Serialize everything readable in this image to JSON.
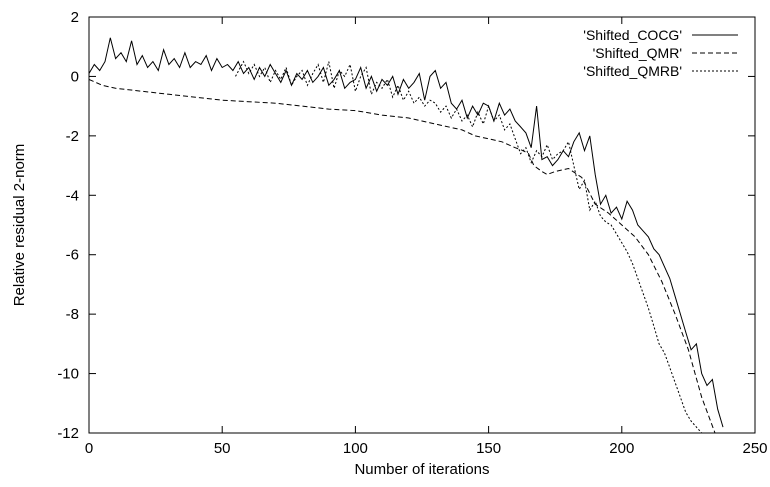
{
  "chart_data": {
    "type": "line",
    "xlabel": "Number of iterations",
    "ylabel": "Relative residual 2-norm",
    "xlim": [
      0,
      250
    ],
    "ylim": [
      -12,
      2
    ],
    "xticks": [
      "0",
      "50",
      "100",
      "150",
      "200",
      "250"
    ],
    "yticks": [
      "2",
      "0",
      "-2",
      "-4",
      "-6",
      "-8",
      "-10",
      "-12"
    ],
    "grid": false,
    "legend_position": "top-right",
    "series": [
      {
        "name": "'Shifted_COCG'",
        "style": "solid",
        "x": [
          0,
          2,
          4,
          6,
          8,
          10,
          12,
          14,
          16,
          18,
          20,
          22,
          24,
          26,
          28,
          30,
          32,
          34,
          36,
          38,
          40,
          42,
          44,
          46,
          48,
          50,
          52,
          54,
          56,
          58,
          60,
          62,
          64,
          66,
          68,
          70,
          72,
          74,
          76,
          78,
          80,
          82,
          84,
          86,
          88,
          90,
          92,
          94,
          96,
          98,
          100,
          102,
          104,
          106,
          108,
          110,
          112,
          114,
          116,
          118,
          120,
          122,
          124,
          126,
          128,
          130,
          132,
          134,
          136,
          138,
          140,
          142,
          144,
          146,
          148,
          150,
          152,
          154,
          156,
          158,
          160,
          162,
          164,
          166,
          168,
          170,
          172,
          174,
          176,
          178,
          180,
          182,
          184,
          186,
          188,
          190,
          192,
          194,
          196,
          198,
          200,
          202,
          204,
          206,
          208,
          210,
          212,
          214,
          216,
          218,
          220,
          222,
          224,
          226,
          228,
          230,
          232,
          234,
          236,
          238
        ],
        "values": [
          0.1,
          0.4,
          0.2,
          0.5,
          1.3,
          0.6,
          0.8,
          0.5,
          1.2,
          0.4,
          0.7,
          0.3,
          0.5,
          0.2,
          0.9,
          0.4,
          0.6,
          0.3,
          0.8,
          0.3,
          0.5,
          0.4,
          0.7,
          0.2,
          0.6,
          0.3,
          0.4,
          0.2,
          0.5,
          0.1,
          0.3,
          -0.1,
          0.3,
          0.0,
          0.4,
          0.1,
          -0.2,
          0.2,
          -0.3,
          0.1,
          -0.1,
          0.2,
          -0.2,
          0.0,
          0.3,
          -0.3,
          -0.1,
          0.2,
          -0.4,
          -0.2,
          -0.1,
          0.3,
          -0.4,
          0.0,
          -0.5,
          -0.1,
          -0.3,
          0.0,
          -0.6,
          -0.1,
          -0.4,
          -0.2,
          0.1,
          -0.8,
          0.0,
          0.2,
          -0.4,
          -0.2,
          -0.9,
          -1.1,
          -0.8,
          -1.4,
          -1.0,
          -1.3,
          -0.9,
          -1.0,
          -1.5,
          -0.9,
          -1.3,
          -1.1,
          -1.5,
          -1.7,
          -1.9,
          -2.4,
          -1.0,
          -2.8,
          -2.7,
          -3.0,
          -2.8,
          -2.5,
          -2.7,
          -2.2,
          -1.9,
          -2.5,
          -2.0,
          -3.3,
          -4.3,
          -4.0,
          -4.6,
          -4.4,
          -4.8,
          -4.2,
          -4.5,
          -5.0,
          -5.2,
          -5.4,
          -5.8,
          -6.0,
          -6.4,
          -6.8,
          -7.4,
          -8.0,
          -8.6,
          -9.2,
          -9.0,
          -10.0,
          -10.4,
          -10.2,
          -11.2,
          -11.8
        ]
      },
      {
        "name": "'Shifted_QMR'",
        "style": "dashed",
        "x": [
          0,
          5,
          10,
          20,
          30,
          40,
          50,
          60,
          70,
          80,
          90,
          100,
          110,
          120,
          130,
          140,
          145,
          150,
          155,
          160,
          163,
          165,
          167,
          170,
          172,
          175,
          180,
          185,
          190,
          195,
          200,
          205,
          210,
          215,
          220,
          225,
          230,
          235
        ],
        "values": [
          -0.1,
          -0.3,
          -0.4,
          -0.5,
          -0.6,
          -0.7,
          -0.8,
          -0.85,
          -0.9,
          -1.0,
          -1.1,
          -1.15,
          -1.3,
          -1.4,
          -1.6,
          -1.8,
          -2.0,
          -2.1,
          -2.2,
          -2.4,
          -2.5,
          -2.6,
          -3.0,
          -3.2,
          -3.3,
          -3.2,
          -3.1,
          -3.4,
          -4.3,
          -4.6,
          -5.0,
          -5.4,
          -6.0,
          -6.9,
          -8.0,
          -9.2,
          -10.8,
          -12.0
        ]
      },
      {
        "name": "'Shifted_QMRB'",
        "style": "dotted",
        "x": [
          55,
          58,
          60,
          62,
          64,
          66,
          68,
          70,
          72,
          74,
          76,
          78,
          80,
          82,
          84,
          86,
          88,
          90,
          92,
          94,
          96,
          98,
          100,
          102,
          104,
          106,
          108,
          110,
          112,
          114,
          116,
          118,
          120,
          122,
          124,
          126,
          128,
          130,
          132,
          134,
          136,
          138,
          140,
          142,
          144,
          146,
          148,
          150,
          152,
          154,
          156,
          158,
          160,
          162,
          164,
          166,
          168,
          170,
          172,
          174,
          176,
          178,
          180,
          182,
          184,
          186,
          188,
          190,
          192,
          194,
          196,
          198,
          200,
          202,
          204,
          206,
          208,
          210,
          212,
          214,
          216,
          218,
          220,
          222,
          224,
          226,
          228,
          230,
          232,
          234
        ],
        "values": [
          0.0,
          0.5,
          0.1,
          0.4,
          0.0,
          0.3,
          -0.2,
          0.2,
          -0.1,
          0.3,
          -0.3,
          0.0,
          0.2,
          -0.3,
          0.1,
          0.4,
          -0.2,
          0.5,
          -0.4,
          0.2,
          0.0,
          0.4,
          -0.5,
          0.0,
          0.3,
          -0.6,
          -0.2,
          -0.4,
          -0.1,
          -0.7,
          -0.3,
          -0.8,
          -0.5,
          -0.9,
          -0.7,
          -1.0,
          -0.8,
          -0.9,
          -1.2,
          -1.0,
          -1.4,
          -1.1,
          -1.5,
          -1.3,
          -1.7,
          -1.2,
          -1.6,
          -1.0,
          -1.5,
          -1.3,
          -1.8,
          -1.6,
          -2.1,
          -2.6,
          -2.4,
          -2.9,
          -2.5,
          -2.7,
          -2.3,
          -2.8,
          -2.6,
          -2.5,
          -2.2,
          -3.0,
          -3.8,
          -3.5,
          -4.5,
          -4.2,
          -4.7,
          -4.9,
          -5.0,
          -5.3,
          -5.6,
          -5.9,
          -6.3,
          -6.8,
          -7.3,
          -7.8,
          -8.4,
          -9.0,
          -9.3,
          -9.8,
          -10.3,
          -10.8,
          -11.3,
          -11.6,
          -11.8,
          -12.0,
          -12.0,
          -12.0
        ]
      }
    ]
  }
}
